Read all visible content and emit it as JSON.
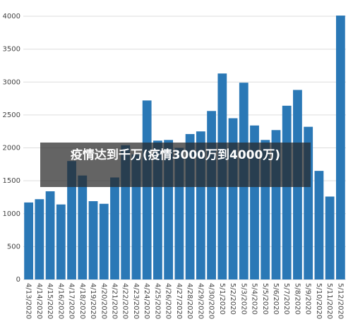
{
  "chart_data": {
    "type": "bar",
    "categories": [
      "4/13/2020",
      "4/14/2020",
      "4/15/2020",
      "4/16/2020",
      "4/17/2020",
      "4/18/2020",
      "4/19/2020",
      "4/20/2020",
      "4/21/2020",
      "4/22/2020",
      "4/23/2020",
      "4/24/2020",
      "4/25/2020",
      "4/26/2020",
      "4/27/2020",
      "4/28/2020",
      "4/29/2020",
      "4/30/2020",
      "5/1/2020",
      "5/2/2020",
      "5/3/2020",
      "5/4/2020",
      "5/5/2020",
      "5/6/2020",
      "5/7/2020",
      "5/8/2020",
      "5/9/2020",
      "5/10/2020",
      "5/11/2020",
      "5/12/2020"
    ],
    "values": [
      1170,
      1220,
      1340,
      1140,
      1800,
      1580,
      1190,
      1150,
      1550,
      2040,
      1900,
      2720,
      2110,
      2120,
      2000,
      2210,
      2250,
      2560,
      3130,
      2450,
      2990,
      2340,
      2120,
      2270,
      2640,
      2880,
      2320,
      1650,
      1260,
      4010
    ],
    "color": "#2a78b6",
    "ylim": [
      0,
      4000
    ],
    "yticks": [
      0,
      500,
      1000,
      1500,
      2000,
      2500,
      3000,
      3500,
      4000
    ],
    "grid": true,
    "annotation": "疫情达到千万(疫情3000万到4000万)"
  }
}
